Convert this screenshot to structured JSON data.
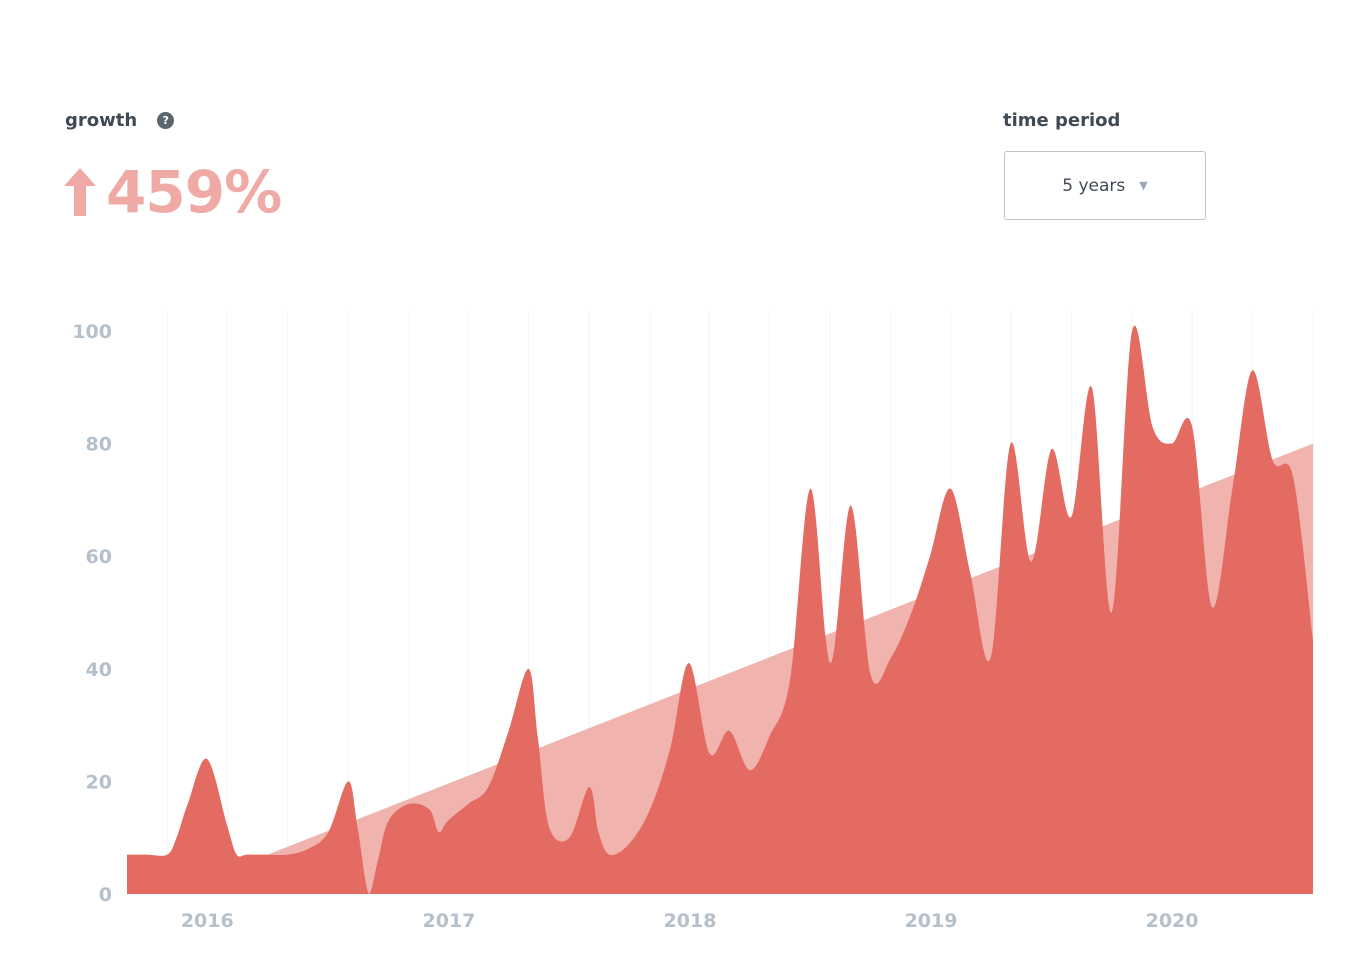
{
  "header": {
    "growth_label": "growth",
    "help_icon": "?",
    "growth_value": "459%",
    "growth_arrow_icon": "arrow-up-icon",
    "period_label": "time period",
    "period_value": "5 years",
    "period_caret_icon": "caret-down-icon"
  },
  "colors": {
    "series": "#e36b62",
    "trend": "#f0b3ae",
    "axis_text": "#b5c0cb",
    "growth_text": "#f0aaa6"
  },
  "chart_data": {
    "type": "area",
    "title": "",
    "xlabel": "",
    "ylabel": "",
    "ylim": [
      0,
      100
    ],
    "xlim": [
      "2015-11",
      "2020-10"
    ],
    "yticks": [
      0,
      20,
      40,
      60,
      80,
      100
    ],
    "xticks": [
      "2016",
      "2017",
      "2018",
      "2019",
      "2020"
    ],
    "grid": "vertical",
    "legend": "none",
    "series": [
      {
        "values": [
          [
            "2015-11-01",
            7
          ],
          [
            "2015-12-01",
            7
          ],
          [
            "2016-01-01",
            7
          ],
          [
            "2016-01-15",
            10
          ],
          [
            "2016-02-01",
            16
          ],
          [
            "2016-03-01",
            24
          ],
          [
            "2016-04-01",
            12
          ],
          [
            "2016-04-15",
            7
          ],
          [
            "2016-05-01",
            7
          ],
          [
            "2016-06-01",
            7
          ],
          [
            "2016-07-01",
            7
          ],
          [
            "2016-08-01",
            8
          ],
          [
            "2016-09-01",
            11
          ],
          [
            "2016-10-01",
            20
          ],
          [
            "2016-10-15",
            12
          ],
          [
            "2016-11-01",
            0
          ],
          [
            "2016-11-15",
            6
          ],
          [
            "2016-12-01",
            13
          ],
          [
            "2017-01-01",
            16
          ],
          [
            "2017-02-01",
            15
          ],
          [
            "2017-02-15",
            11
          ],
          [
            "2017-03-01",
            13
          ],
          [
            "2017-04-01",
            16
          ],
          [
            "2017-05-01",
            19
          ],
          [
            "2017-06-01",
            29
          ],
          [
            "2017-07-01",
            40
          ],
          [
            "2017-07-15",
            28
          ],
          [
            "2017-08-01",
            12
          ],
          [
            "2017-09-01",
            10
          ],
          [
            "2017-10-01",
            19
          ],
          [
            "2017-10-15",
            11
          ],
          [
            "2017-11-01",
            7
          ],
          [
            "2017-12-01",
            9
          ],
          [
            "2018-01-01",
            15
          ],
          [
            "2018-02-01",
            26
          ],
          [
            "2018-03-01",
            41
          ],
          [
            "2018-04-01",
            25
          ],
          [
            "2018-05-01",
            29
          ],
          [
            "2018-06-01",
            22
          ],
          [
            "2018-07-01",
            28
          ],
          [
            "2018-08-01",
            38
          ],
          [
            "2018-09-01",
            72
          ],
          [
            "2018-10-01",
            41
          ],
          [
            "2018-11-01",
            69
          ],
          [
            "2018-12-01",
            39
          ],
          [
            "2019-01-01",
            42
          ],
          [
            "2019-02-01",
            50
          ],
          [
            "2019-03-01",
            60
          ],
          [
            "2019-04-01",
            72
          ],
          [
            "2019-05-01",
            57
          ],
          [
            "2019-06-01",
            42
          ],
          [
            "2019-07-01",
            80
          ],
          [
            "2019-08-01",
            59
          ],
          [
            "2019-09-01",
            79
          ],
          [
            "2019-10-01",
            67
          ],
          [
            "2019-11-01",
            90
          ],
          [
            "2019-12-01",
            50
          ],
          [
            "2020-01-01",
            100
          ],
          [
            "2020-02-01",
            83
          ],
          [
            "2020-03-01",
            80
          ],
          [
            "2020-04-01",
            83
          ],
          [
            "2020-05-01",
            51
          ],
          [
            "2020-06-01",
            72
          ],
          [
            "2020-07-01",
            93
          ],
          [
            "2020-08-01",
            77
          ],
          [
            "2020-09-01",
            74
          ],
          [
            "2020-10-01",
            45
          ]
        ]
      },
      {
        "type": "trend",
        "values": [
          [
            "2016-06-01",
            7
          ],
          [
            "2020-10-01",
            80
          ]
        ]
      }
    ]
  }
}
